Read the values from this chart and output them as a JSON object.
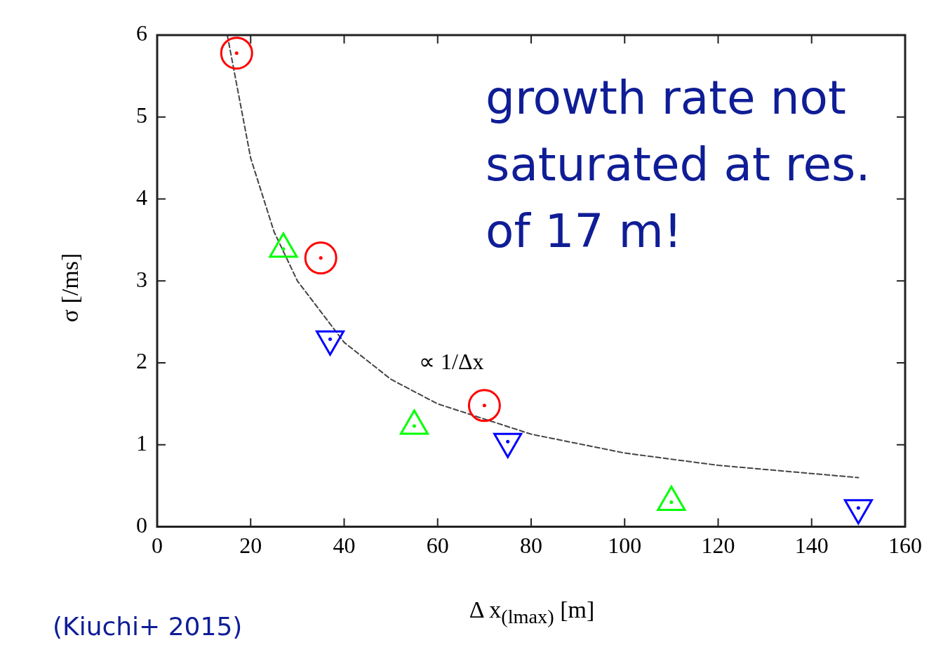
{
  "chart_data": {
    "type": "scatter",
    "xlabel": "Δ x$_{(lmax)}$ [m]",
    "ylabel": "σ [/ms]",
    "xlim": [
      0,
      160
    ],
    "xticks": [
      0,
      20,
      40,
      60,
      80,
      100,
      120,
      140,
      160
    ],
    "ylim": [
      0,
      6
    ],
    "yticks": [
      0,
      1,
      2,
      3,
      4,
      5,
      6
    ],
    "grid": false,
    "legend": false,
    "series": [
      {
        "color": "#ff0000",
        "marker": "circle",
        "x": [
          17,
          35,
          70
        ],
        "values": [
          5.78,
          3.28,
          1.48
        ]
      },
      {
        "color": "#00ff00",
        "marker": "triangle",
        "x": [
          27,
          55,
          110
        ],
        "values": [
          3.39,
          1.23,
          0.3
        ]
      },
      {
        "color": "#0000ff",
        "marker": "triangle-down",
        "x": [
          37,
          75,
          150
        ],
        "values": [
          2.29,
          1.04,
          0.23
        ]
      },
      {
        "type": "line",
        "color": "#444444",
        "marker": "none",
        "line_style": "dashed",
        "x": [
          15,
          20,
          25,
          30,
          40,
          50,
          60,
          80,
          100,
          120,
          150
        ],
        "values": [
          6.0,
          4.5,
          3.6,
          3.0,
          2.25,
          1.8,
          1.5,
          1.13,
          0.9,
          0.75,
          0.6
        ]
      }
    ],
    "annotations": [
      "∝ 1/Δx",
      "growth rate not saturated at res. of 17 m!",
      "(Kiuchi+ 2015)"
    ]
  }
}
